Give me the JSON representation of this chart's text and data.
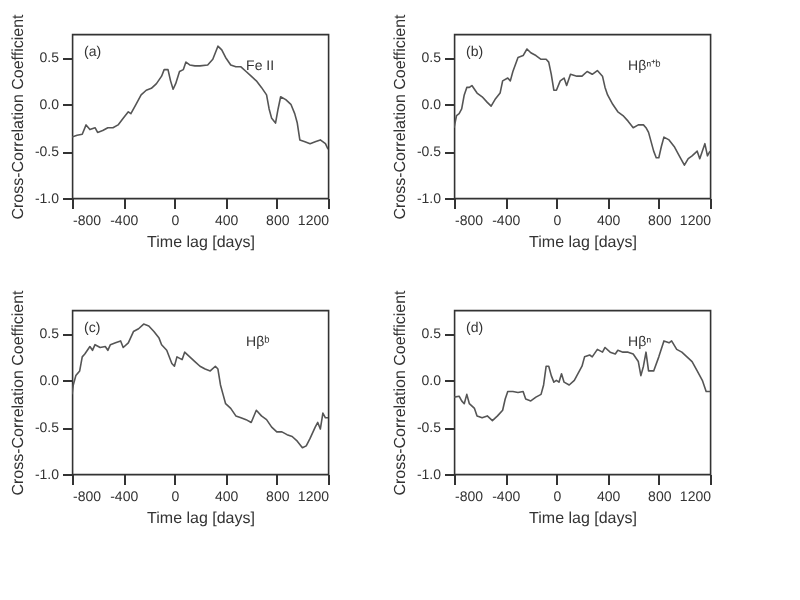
{
  "chart_data": [
    {
      "type": "line",
      "xlabel": "Time lag [days]",
      "ylabel": "Cross-Correlation Coefficient",
      "annotations": [
        "(a)",
        "Fe II"
      ],
      "color": "#555555",
      "xlim": [
        -800,
        1200
      ],
      "ylim": [
        -1.0,
        0.75
      ],
      "xticks": [
        -800,
        -400,
        0,
        400,
        800,
        1200
      ],
      "yticks": [
        {
          "value": -1.0,
          "label": "-1.0"
        },
        {
          "value": -0.5,
          "label": "-0.5"
        },
        {
          "value": 0.0,
          "label": "0.0"
        },
        {
          "value": 0.5,
          "label": "0.5"
        }
      ],
      "x": [
        -800,
        -760,
        -720,
        -690,
        -660,
        -620,
        -600,
        -560,
        -520,
        -480,
        -440,
        -400,
        -360,
        -340,
        -300,
        -260,
        -220,
        -180,
        -140,
        -100,
        -80,
        -50,
        -30,
        -10,
        10,
        40,
        70,
        90,
        120,
        160,
        200,
        260,
        300,
        340,
        370,
        400,
        440,
        480,
        520,
        560,
        600,
        640,
        680,
        720,
        740,
        760,
        790,
        810,
        830,
        870,
        910,
        940,
        960,
        980,
        1020,
        1060,
        1100,
        1140,
        1180,
        1200
      ],
      "values": [
        -0.35,
        -0.33,
        -0.32,
        -0.22,
        -0.27,
        -0.25,
        -0.3,
        -0.28,
        -0.25,
        -0.25,
        -0.22,
        -0.15,
        -0.08,
        -0.1,
        0.0,
        0.1,
        0.15,
        0.17,
        0.22,
        0.3,
        0.37,
        0.37,
        0.25,
        0.16,
        0.22,
        0.35,
        0.37,
        0.45,
        0.42,
        0.41,
        0.41,
        0.42,
        0.48,
        0.62,
        0.58,
        0.5,
        0.42,
        0.4,
        0.4,
        0.35,
        0.3,
        0.25,
        0.18,
        0.1,
        -0.05,
        -0.15,
        -0.2,
        -0.05,
        0.08,
        0.05,
        0.0,
        -0.1,
        -0.2,
        -0.38,
        -0.4,
        -0.42,
        -0.4,
        -0.38,
        -0.42,
        -0.48
      ]
    },
    {
      "type": "line",
      "xlabel": "Time lag [days]",
      "ylabel": "Cross-Correlation Coefficient",
      "annotations": [
        "(b)",
        "Hβⁿ⁺ᵇ"
      ],
      "color": "#555555",
      "xlim": [
        -800,
        1200
      ],
      "ylim": [
        -1.0,
        0.75
      ],
      "xticks": [
        -800,
        -400,
        0,
        400,
        800,
        1200
      ],
      "yticks": [
        {
          "value": -1.0,
          "label": "-1.0"
        },
        {
          "value": -0.5,
          "label": "-0.5"
        },
        {
          "value": 0.0,
          "label": "0.0"
        },
        {
          "value": 0.5,
          "label": "0.5"
        }
      ],
      "x": [
        -800,
        -780,
        -760,
        -740,
        -720,
        -700,
        -680,
        -660,
        -620,
        -580,
        -540,
        -510,
        -480,
        -440,
        -420,
        -380,
        -360,
        -340,
        -300,
        -260,
        -230,
        -200,
        -160,
        -120,
        -80,
        -60,
        -40,
        -20,
        0,
        30,
        60,
        80,
        110,
        160,
        200,
        240,
        280,
        320,
        360,
        380,
        400,
        440,
        480,
        520,
        560,
        600,
        640,
        680,
        700,
        720,
        760,
        780,
        800,
        820,
        840,
        880,
        920,
        960,
        1000,
        1030,
        1060,
        1100,
        1120,
        1160,
        1180,
        1200
      ],
      "values": [
        -0.25,
        -0.12,
        -0.1,
        -0.05,
        0.1,
        0.18,
        0.18,
        0.2,
        0.12,
        0.08,
        0.02,
        -0.02,
        0.05,
        0.12,
        0.25,
        0.28,
        0.25,
        0.35,
        0.5,
        0.52,
        0.59,
        0.55,
        0.52,
        0.48,
        0.48,
        0.45,
        0.32,
        0.15,
        0.15,
        0.25,
        0.28,
        0.2,
        0.32,
        0.3,
        0.3,
        0.35,
        0.32,
        0.36,
        0.3,
        0.18,
        0.1,
        0.0,
        -0.08,
        -0.12,
        -0.18,
        -0.25,
        -0.22,
        -0.22,
        -0.25,
        -0.3,
        -0.5,
        -0.57,
        -0.57,
        -0.45,
        -0.35,
        -0.38,
        -0.45,
        -0.55,
        -0.65,
        -0.58,
        -0.55,
        -0.5,
        -0.58,
        -0.42,
        -0.55,
        -0.5
      ]
    },
    {
      "type": "line",
      "xlabel": "Time lag [days]",
      "ylabel": "Cross-Correlation Coefficient",
      "annotations": [
        "(c)",
        "Hβᵇ"
      ],
      "color": "#555555",
      "xlim": [
        -800,
        1200
      ],
      "ylim": [
        -1.0,
        0.75
      ],
      "xticks": [
        -800,
        -400,
        0,
        400,
        800,
        1200
      ],
      "yticks": [
        {
          "value": -1.0,
          "label": "-1.0"
        },
        {
          "value": -0.5,
          "label": "-0.5"
        },
        {
          "value": 0.0,
          "label": "0.0"
        },
        {
          "value": 0.5,
          "label": "0.5"
        }
      ],
      "x": [
        -800,
        -790,
        -770,
        -740,
        -720,
        -700,
        -660,
        -640,
        -620,
        -580,
        -540,
        -520,
        -500,
        -460,
        -420,
        -400,
        -360,
        -320,
        -280,
        -240,
        -200,
        -160,
        -120,
        -100,
        -60,
        -20,
        0,
        20,
        60,
        80,
        120,
        160,
        200,
        240,
        280,
        320,
        340,
        360,
        380,
        400,
        440,
        480,
        520,
        560,
        600,
        640,
        680,
        720,
        760,
        800,
        840,
        880,
        920,
        960,
        1000,
        1030,
        1060,
        1100,
        1120,
        1140,
        1160,
        1180,
        1200
      ],
      "values": [
        -0.15,
        -0.05,
        0.05,
        0.1,
        0.25,
        0.28,
        0.36,
        0.32,
        0.38,
        0.35,
        0.36,
        0.32,
        0.38,
        0.4,
        0.42,
        0.35,
        0.4,
        0.52,
        0.55,
        0.6,
        0.58,
        0.52,
        0.45,
        0.38,
        0.32,
        0.18,
        0.15,
        0.25,
        0.22,
        0.3,
        0.25,
        0.2,
        0.15,
        0.12,
        0.1,
        0.15,
        0.12,
        -0.05,
        -0.15,
        -0.25,
        -0.3,
        -0.38,
        -0.4,
        -0.42,
        -0.45,
        -0.32,
        -0.38,
        -0.42,
        -0.5,
        -0.55,
        -0.55,
        -0.58,
        -0.6,
        -0.65,
        -0.72,
        -0.7,
        -0.62,
        -0.5,
        -0.45,
        -0.52,
        -0.35,
        -0.4,
        -0.4
      ]
    },
    {
      "type": "line",
      "xlabel": "Time lag [days]",
      "ylabel": "Cross-Correlation Coefficient",
      "annotations": [
        "(d)",
        "Hβⁿ"
      ],
      "color": "#555555",
      "xlim": [
        -800,
        1200
      ],
      "ylim": [
        -1.0,
        0.75
      ],
      "xticks": [
        -800,
        -400,
        0,
        400,
        800,
        1200
      ],
      "yticks": [
        {
          "value": -1.0,
          "label": "-1.0"
        },
        {
          "value": -0.5,
          "label": "-0.5"
        },
        {
          "value": 0.0,
          "label": "0.0"
        },
        {
          "value": 0.5,
          "label": "0.5"
        }
      ],
      "x": [
        -800,
        -760,
        -740,
        -720,
        -700,
        -680,
        -640,
        -620,
        -580,
        -540,
        -500,
        -460,
        -420,
        -400,
        -380,
        -340,
        -300,
        -260,
        -240,
        -200,
        -160,
        -120,
        -100,
        -80,
        -60,
        -40,
        -20,
        0,
        20,
        40,
        60,
        100,
        140,
        160,
        200,
        220,
        260,
        280,
        320,
        360,
        380,
        420,
        460,
        480,
        520,
        560,
        600,
        640,
        660,
        680,
        700,
        720,
        760,
        800,
        840,
        880,
        900,
        940,
        980,
        1020,
        1060,
        1100,
        1140,
        1170,
        1200
      ],
      "values": [
        -0.18,
        -0.17,
        -0.22,
        -0.25,
        -0.15,
        -0.25,
        -0.3,
        -0.38,
        -0.4,
        -0.38,
        -0.43,
        -0.38,
        -0.32,
        -0.2,
        -0.12,
        -0.12,
        -0.13,
        -0.12,
        -0.2,
        -0.22,
        -0.18,
        -0.15,
        -0.05,
        0.15,
        0.15,
        0.05,
        -0.02,
        0.0,
        -0.02,
        0.07,
        -0.02,
        -0.05,
        0.0,
        0.05,
        0.15,
        0.25,
        0.27,
        0.25,
        0.33,
        0.3,
        0.35,
        0.3,
        0.28,
        0.32,
        0.3,
        0.3,
        0.28,
        0.2,
        0.05,
        0.15,
        0.3,
        0.1,
        0.1,
        0.25,
        0.42,
        0.4,
        0.42,
        0.33,
        0.3,
        0.25,
        0.2,
        0.1,
        0.0,
        -0.12,
        -0.12
      ]
    }
  ]
}
